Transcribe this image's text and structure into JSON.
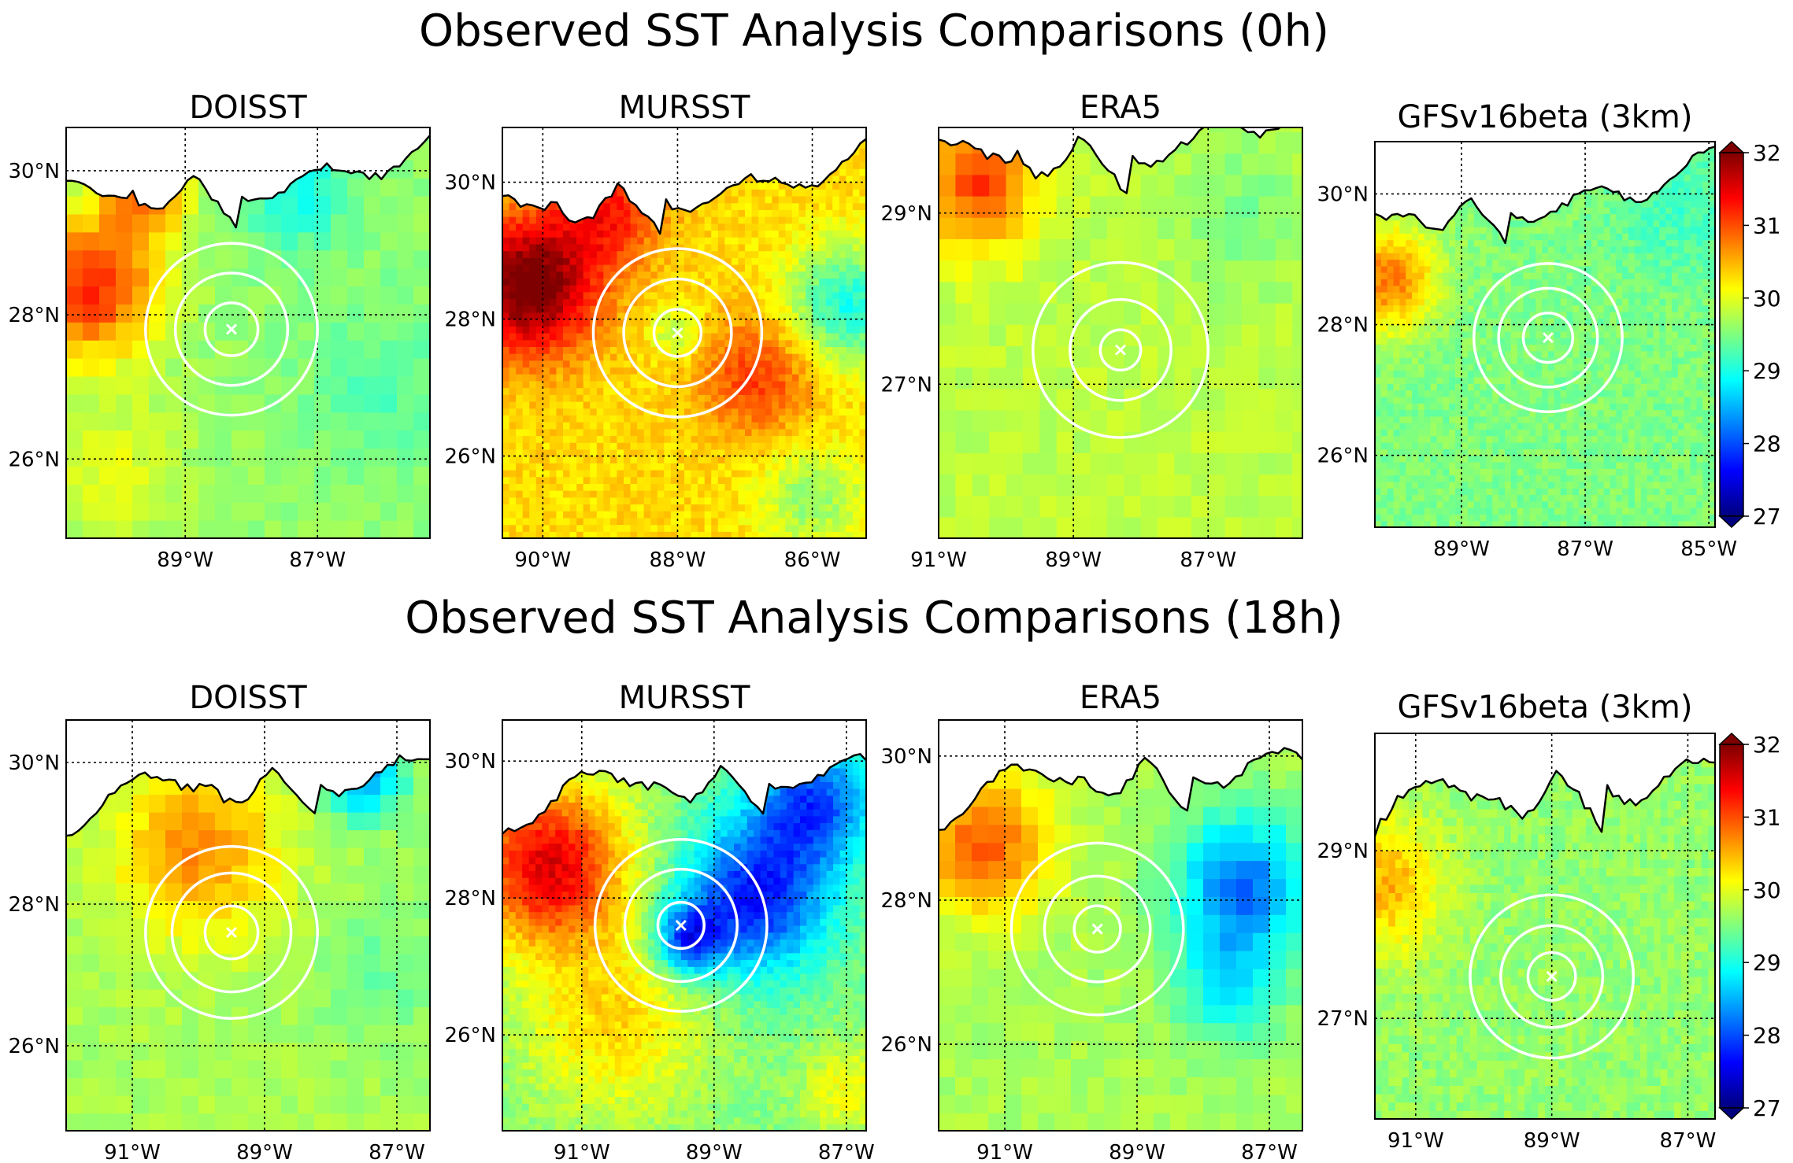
{
  "chart_data": {
    "type": "heatmap",
    "variable": "sea surface temperature analysis",
    "colorbar": {
      "min": 27,
      "max": 32,
      "ticks": [
        "32",
        "31",
        "30",
        "29",
        "28",
        "27"
      ],
      "colors": [
        "#00007f",
        "#0000ff",
        "#007fff",
        "#00ffff",
        "#7fff7f",
        "#ffff00",
        "#ff7f00",
        "#ff0000",
        "#7f0000"
      ]
    },
    "rows": [
      {
        "title": "Observed SST Analysis Comparisons (0h)",
        "panels": [
          {
            "title": "DOISST",
            "resolution": "coarse",
            "lon_range": [
              -90.8,
              -85.3
            ],
            "lat_range": [
              24.9,
              30.6
            ],
            "lon_ticks": [
              -89,
              -87
            ],
            "lat_ticks": [
              26,
              28,
              30
            ],
            "lon_labels": [
              "89°W",
              "87°W"
            ],
            "lat_labels": [
              "26°N",
              "28°N",
              "30°N"
            ],
            "storm_center": [
              -88.3,
              27.8
            ],
            "ring_radii_deg": [
              0.4,
              0.85,
              1.3
            ],
            "has_colorbar": false,
            "base_sst": 29.6,
            "features": [
              {
                "lon": -90.4,
                "lat": 28.4,
                "sst_anomaly": 1.6,
                "radius_deg": 1.0
              },
              {
                "lon": -89.6,
                "lat": 29.7,
                "sst_anomaly": 1.2,
                "radius_deg": 0.6
              },
              {
                "lon": -87.3,
                "lat": 29.8,
                "sst_anomaly": -0.6,
                "radius_deg": 0.9
              },
              {
                "lon": -86.0,
                "lat": 27.0,
                "sst_anomaly": -0.3,
                "radius_deg": 1.2
              },
              {
                "lon": -90.0,
                "lat": 25.8,
                "sst_anomaly": 0.4,
                "radius_deg": 1.0
              }
            ]
          },
          {
            "title": "MURSST",
            "resolution": "fine",
            "lon_range": [
              -90.6,
              -85.2
            ],
            "lat_range": [
              24.8,
              30.8
            ],
            "lon_ticks": [
              -90,
              -88,
              -86
            ],
            "lat_ticks": [
              26,
              28,
              30
            ],
            "lon_labels": [
              "90°W",
              "88°W",
              "86°W"
            ],
            "lat_labels": [
              "26°N",
              "28°N",
              "30°N"
            ],
            "storm_center": [
              -88.0,
              27.8
            ],
            "ring_radii_deg": [
              0.35,
              0.8,
              1.25
            ],
            "has_colorbar": false,
            "base_sst": 30.3,
            "features": [
              {
                "lon": -90.2,
                "lat": 28.5,
                "sst_anomaly": 1.9,
                "radius_deg": 1.0
              },
              {
                "lon": -89.0,
                "lat": 29.6,
                "sst_anomaly": 0.9,
                "radius_deg": 0.8
              },
              {
                "lon": -86.8,
                "lat": 27.2,
                "sst_anomaly": 0.8,
                "radius_deg": 0.9
              },
              {
                "lon": -85.5,
                "lat": 28.2,
                "sst_anomaly": -1.3,
                "radius_deg": 0.9
              },
              {
                "lon": -88.0,
                "lat": 27.8,
                "sst_anomaly": -0.6,
                "radius_deg": 0.4
              },
              {
                "lon": -86.0,
                "lat": 25.4,
                "sst_anomaly": -0.7,
                "radius_deg": 0.8
              }
            ]
          },
          {
            "title": "ERA5",
            "resolution": "coarse",
            "lon_range": [
              -91.0,
              -85.6
            ],
            "lat_range": [
              25.2,
              30.0
            ],
            "lon_ticks": [
              -91,
              -89,
              -87
            ],
            "lat_ticks": [
              27,
              29
            ],
            "lon_labels": [
              "91°W",
              "89°W",
              "87°W"
            ],
            "lat_labels": [
              "27°N",
              "29°N"
            ],
            "storm_center": [
              -88.3,
              27.4
            ],
            "ring_radii_deg": [
              0.3,
              0.75,
              1.3
            ],
            "has_colorbar": false,
            "base_sst": 29.8,
            "features": [
              {
                "lon": -90.4,
                "lat": 29.4,
                "sst_anomaly": 1.3,
                "radius_deg": 0.8
              },
              {
                "lon": -86.5,
                "lat": 29.0,
                "sst_anomaly": -0.3,
                "radius_deg": 1.0
              }
            ]
          },
          {
            "title": "GFSv16beta (3km)",
            "resolution": "fine",
            "lon_range": [
              -90.4,
              -84.9
            ],
            "lat_range": [
              24.9,
              30.8
            ],
            "lon_ticks": [
              -89,
              -87,
              -85
            ],
            "lat_ticks": [
              26,
              28,
              30
            ],
            "lon_labels": [
              "89°W",
              "87°W",
              "85°W"
            ],
            "lat_labels": [
              "26°N",
              "28°N",
              "30°N"
            ],
            "storm_center": [
              -87.6,
              27.8
            ],
            "ring_radii_deg": [
              0.4,
              0.8,
              1.2
            ],
            "has_colorbar": true,
            "base_sst": 29.5,
            "features": [
              {
                "lon": -90.2,
                "lat": 28.7,
                "sst_anomaly": 1.3,
                "radius_deg": 0.8
              },
              {
                "lon": -85.5,
                "lat": 29.8,
                "sst_anomaly": -0.3,
                "radius_deg": 1.0
              }
            ]
          }
        ]
      },
      {
        "title": "Observed SST Analysis Comparisons (18h)",
        "panels": [
          {
            "title": "DOISST",
            "resolution": "coarse",
            "lon_range": [
              -92.0,
              -86.5
            ],
            "lat_range": [
              24.8,
              30.6
            ],
            "lon_ticks": [
              -91,
              -89,
              -87
            ],
            "lat_ticks": [
              26,
              28,
              30
            ],
            "lon_labels": [
              "91°W",
              "89°W",
              "87°W"
            ],
            "lat_labels": [
              "26°N",
              "28°N",
              "30°N"
            ],
            "storm_center": [
              -89.5,
              27.6
            ],
            "ring_radii_deg": [
              0.4,
              0.9,
              1.3
            ],
            "has_colorbar": false,
            "base_sst": 29.7,
            "features": [
              {
                "lon": -90.0,
                "lat": 28.8,
                "sst_anomaly": 1.0,
                "radius_deg": 1.2
              },
              {
                "lon": -87.5,
                "lat": 29.8,
                "sst_anomaly": -1.3,
                "radius_deg": 0.6
              },
              {
                "lon": -87.2,
                "lat": 27.0,
                "sst_anomaly": -0.3,
                "radius_deg": 1.0
              }
            ]
          },
          {
            "title": "MURSST",
            "resolution": "fine",
            "lon_range": [
              -92.2,
              -86.7
            ],
            "lat_range": [
              24.6,
              30.6
            ],
            "lon_ticks": [
              -91,
              -89,
              -87
            ],
            "lat_ticks": [
              26,
              28,
              30
            ],
            "lon_labels": [
              "91°W",
              "89°W",
              "87°W"
            ],
            "lat_labels": [
              "26°N",
              "28°N",
              "30°N"
            ],
            "storm_center": [
              -89.5,
              27.6
            ],
            "ring_radii_deg": [
              0.35,
              0.85,
              1.3
            ],
            "has_colorbar": false,
            "base_sst": 29.5,
            "features": [
              {
                "lon": -91.5,
                "lat": 28.5,
                "sst_anomaly": 2.0,
                "radius_deg": 1.2
              },
              {
                "lon": -90.5,
                "lat": 26.2,
                "sst_anomaly": 0.8,
                "radius_deg": 1.4
              },
              {
                "lon": -88.4,
                "lat": 28.0,
                "sst_anomaly": -1.8,
                "radius_deg": 1.1
              },
              {
                "lon": -87.5,
                "lat": 29.4,
                "sst_anomaly": -1.5,
                "radius_deg": 0.9
              },
              {
                "lon": -89.4,
                "lat": 27.4,
                "sst_anomaly": -1.5,
                "radius_deg": 0.5
              },
              {
                "lon": -87.0,
                "lat": 25.2,
                "sst_anomaly": 0.6,
                "radius_deg": 0.7
              }
            ]
          },
          {
            "title": "ERA5",
            "resolution": "coarse",
            "lon_range": [
              -92.0,
              -86.5
            ],
            "lat_range": [
              24.8,
              30.5
            ],
            "lon_ticks": [
              -91,
              -89,
              -87
            ],
            "lat_ticks": [
              26,
              28,
              30
            ],
            "lon_labels": [
              "91°W",
              "89°W",
              "87°W"
            ],
            "lat_labels": [
              "26°N",
              "28°N",
              "30°N"
            ],
            "storm_center": [
              -89.6,
              27.6
            ],
            "ring_radii_deg": [
              0.35,
              0.8,
              1.3
            ],
            "has_colorbar": false,
            "base_sst": 29.7,
            "features": [
              {
                "lon": -91.3,
                "lat": 28.8,
                "sst_anomaly": 1.2,
                "radius_deg": 1.0
              },
              {
                "lon": -87.4,
                "lat": 28.2,
                "sst_anomaly": -1.5,
                "radius_deg": 1.0
              },
              {
                "lon": -87.6,
                "lat": 26.8,
                "sst_anomaly": -0.8,
                "radius_deg": 0.8
              }
            ]
          },
          {
            "title": "GFSv16beta (3km)",
            "resolution": "fine",
            "lon_range": [
              -91.6,
              -86.6
            ],
            "lat_range": [
              25.8,
              30.4
            ],
            "lon_ticks": [
              -91,
              -89,
              -87
            ],
            "lat_ticks": [
              27,
              29
            ],
            "lon_labels": [
              "91°W",
              "89°W",
              "87°W"
            ],
            "lat_labels": [
              "27°N",
              "29°N"
            ],
            "storm_center": [
              -89.0,
              27.5
            ],
            "ring_radii_deg": [
              0.35,
              0.75,
              1.2
            ],
            "has_colorbar": true,
            "base_sst": 29.6,
            "features": [
              {
                "lon": -91.4,
                "lat": 28.6,
                "sst_anomaly": 0.9,
                "radius_deg": 0.8
              }
            ]
          }
        ]
      }
    ]
  }
}
